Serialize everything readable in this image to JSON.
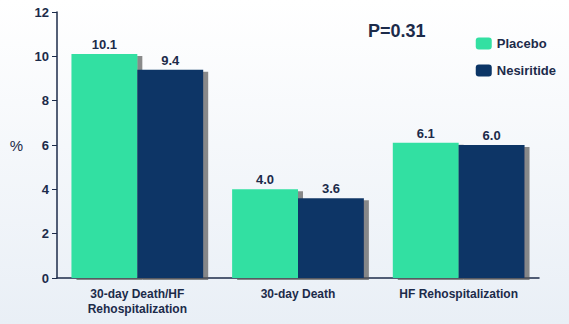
{
  "chart_data": {
    "type": "bar",
    "categories": [
      "30-day Death/HF\nRehospitalization",
      "30-day Death",
      "HF Rehospitalization"
    ],
    "series": [
      {
        "name": "Placebo",
        "color": "#33e0a2",
        "values": [
          10.1,
          4.0,
          6.1
        ],
        "value_labels": [
          "10.1",
          "4.0",
          "6.1"
        ]
      },
      {
        "name": "Nesiritide",
        "color": "#0b3566",
        "values": [
          9.4,
          3.6,
          6.0
        ],
        "value_labels": [
          "9.4",
          "3.6",
          "6.0"
        ]
      }
    ],
    "y_label": "%",
    "annotation": "P=0.31",
    "ylim": [
      0,
      12
    ],
    "yticks": [
      0,
      2,
      4,
      6,
      8,
      10,
      12
    ],
    "grid": false,
    "legend": "upper right",
    "data_labels": true
  }
}
